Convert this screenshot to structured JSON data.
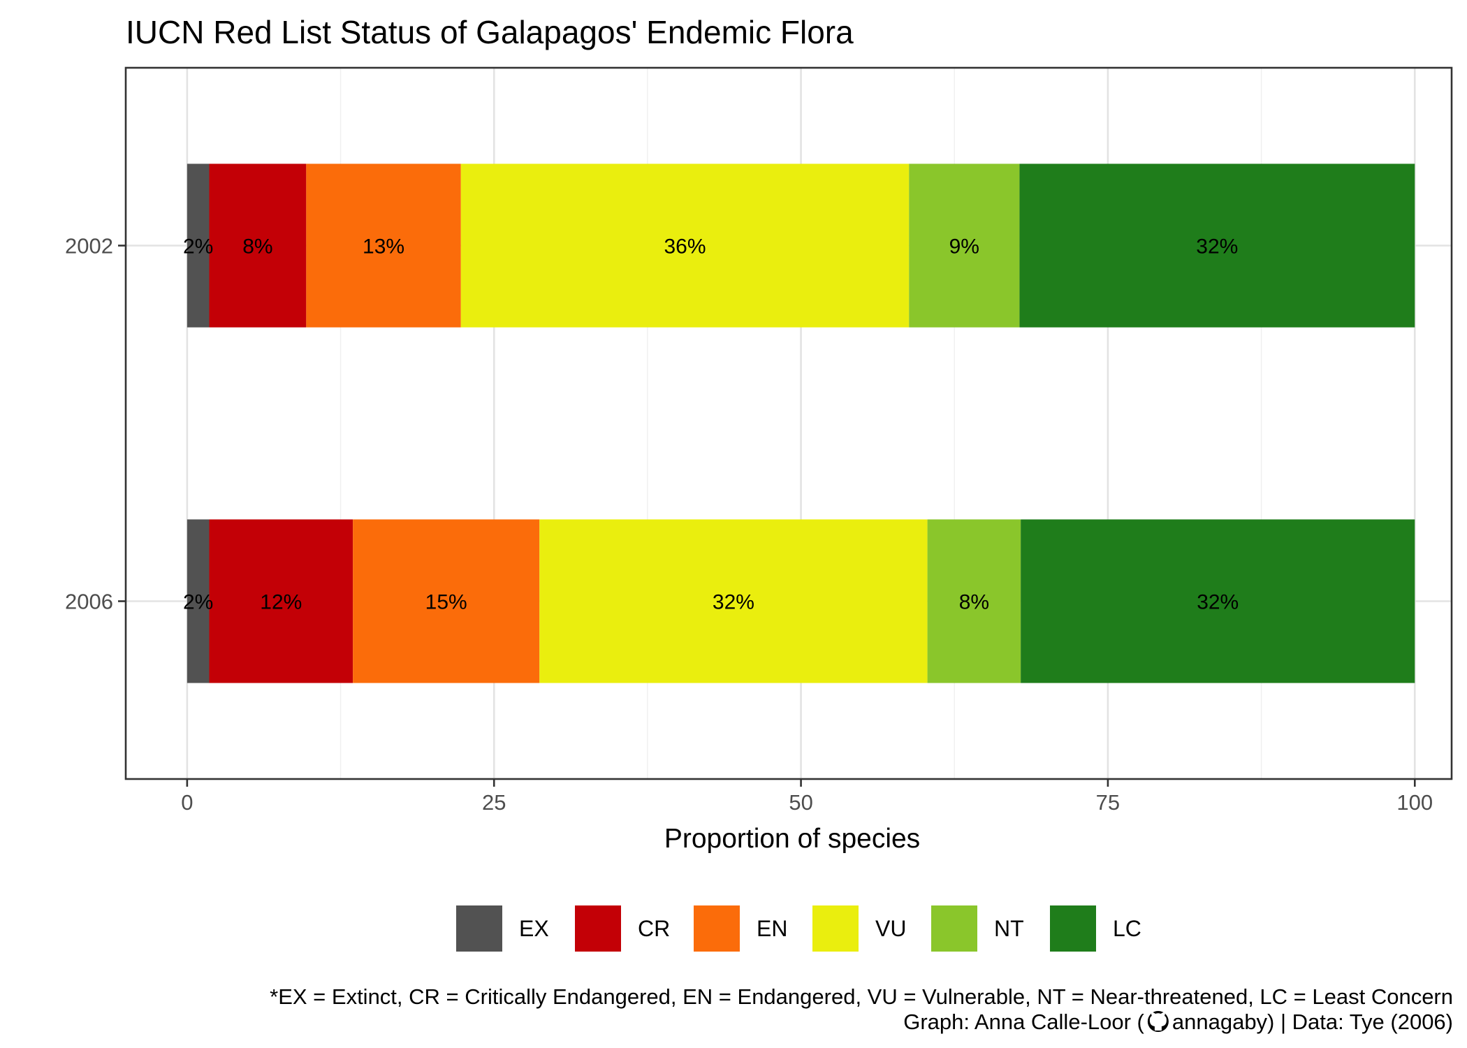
{
  "chart_data": {
    "type": "bar",
    "orientation": "horizontal",
    "stacked": true,
    "title": "IUCN Red List Status of Galapagos' Endemic Flora",
    "xlabel": "Proportion of species",
    "ylabel": "",
    "xlim": [
      -5,
      103
    ],
    "x_ticks": [
      "0",
      "25",
      "50",
      "75",
      "100"
    ],
    "x_tick_values": [
      0,
      25,
      50,
      75,
      100
    ],
    "categories": [
      "2002",
      "2006"
    ],
    "grid": true,
    "legend_position": "bottom",
    "series": [
      {
        "name": "EX",
        "color": "#525252",
        "values": [
          1.8,
          1.8
        ],
        "labels": [
          "2%",
          "2%"
        ]
      },
      {
        "name": "CR",
        "color": "#c30006",
        "values": [
          7.9,
          11.7
        ],
        "labels": [
          "8%",
          "12%"
        ]
      },
      {
        "name": "EN",
        "color": "#fb6c0a",
        "values": [
          12.6,
          15.2
        ],
        "labels": [
          "13%",
          "15%"
        ]
      },
      {
        "name": "VU",
        "color": "#eaee0e",
        "values": [
          36.5,
          31.6
        ],
        "labels": [
          "36%",
          "32%"
        ]
      },
      {
        "name": "NT",
        "color": "#8ac62b",
        "values": [
          9.0,
          7.6
        ],
        "labels": [
          "9%",
          "8%"
        ]
      },
      {
        "name": "LC",
        "color": "#1f7d1b",
        "values": [
          32.2,
          32.1
        ],
        "labels": [
          "32%",
          "32%"
        ]
      }
    ],
    "caption_lines": [
      "*EX = Extinct, CR = Critically Endangered, EN = Endangered, VU = Vulnerable, NT = Near-threatened, LC = Least Concern",
      "Graph: Anna Calle-Loor (",
      "annagaby) | Data: Tye (2006)"
    ],
    "caption_icon": "github-icon"
  }
}
